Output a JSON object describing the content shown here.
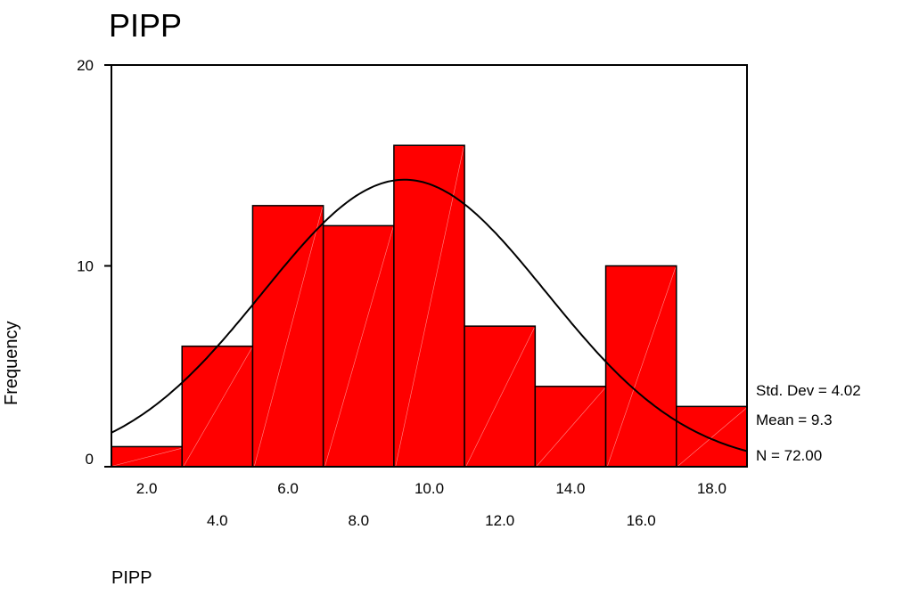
{
  "chart_data": {
    "type": "bar",
    "title": "PIPP",
    "xlabel": "PIPP",
    "ylabel": "Frequency",
    "bins": [
      {
        "center": 2.0,
        "value": 1
      },
      {
        "center": 4.0,
        "value": 6
      },
      {
        "center": 6.0,
        "value": 13
      },
      {
        "center": 8.0,
        "value": 12
      },
      {
        "center": 10.0,
        "value": 16
      },
      {
        "center": 12.0,
        "value": 7
      },
      {
        "center": 14.0,
        "value": 4
      },
      {
        "center": 16.0,
        "value": 10
      },
      {
        "center": 18.0,
        "value": 3
      }
    ],
    "bin_width": 2.0,
    "xlim": [
      1.0,
      19.0
    ],
    "ylim": [
      0,
      20
    ],
    "y_ticks": [
      "0",
      "10",
      "20"
    ],
    "x_ticks_top_row": [
      "2.0",
      "6.0",
      "10.0",
      "14.0",
      "18.0"
    ],
    "x_ticks_bottom_row": [
      "4.0",
      "8.0",
      "12.0",
      "16.0"
    ],
    "stats": {
      "std_dev": "Std. Dev = 4.02",
      "mean": "Mean = 9.3",
      "n": "N = 72.00"
    },
    "normal_curve": {
      "mean": 9.3,
      "sd": 4.02,
      "n": 72
    },
    "bar_color": "#ff0000",
    "grid": false,
    "legend": "none"
  }
}
